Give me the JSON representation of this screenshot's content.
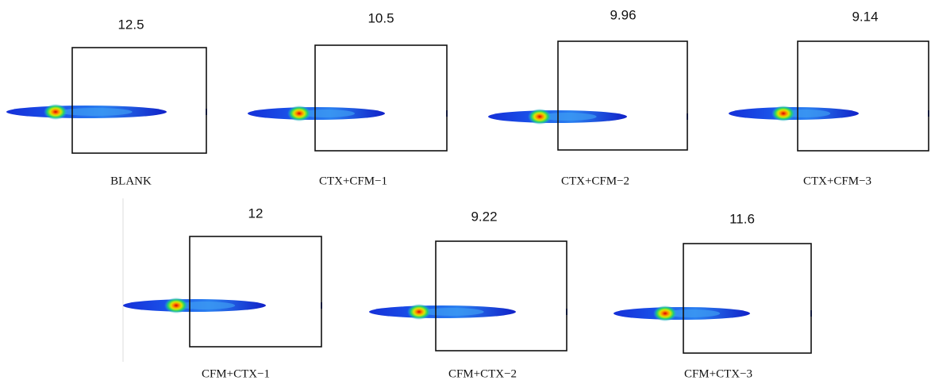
{
  "panels": [
    {
      "value": 12.5,
      "label": "BLANK"
    },
    {
      "value": 10.5,
      "label": "CTX+CFM−1"
    },
    {
      "value": 9.96,
      "label": "CTX+CFM−2"
    },
    {
      "value": 9.14,
      "label": "CTX+CFM−3"
    },
    {
      "value": 12,
      "label": "CFM+CTX−1"
    },
    {
      "value": 9.22,
      "label": "CFM+CTX−2"
    },
    {
      "value": 11.6,
      "label": "CFM+CTX−3"
    }
  ]
}
